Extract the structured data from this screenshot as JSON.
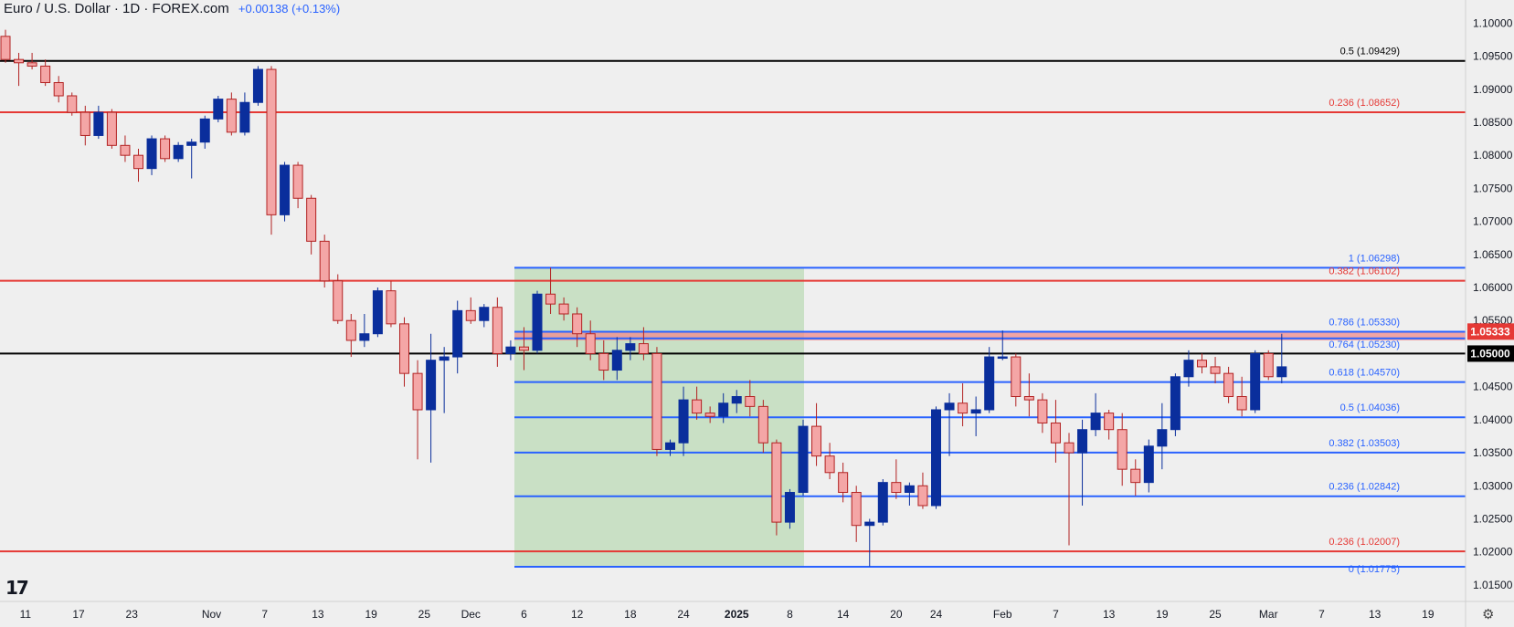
{
  "header": {
    "title": "Euro / U.S. Dollar · 1D · FOREX.com",
    "change": "+0.00138 (+0.13%)"
  },
  "icons": {
    "logo": "tradingview-logo",
    "settings": "gear-icon"
  },
  "colors": {
    "bull": "#0a2e9c",
    "bear": "#f4a6a6",
    "bear_border": "#b22222",
    "fib_red": "#e53935",
    "fib_blue": "#2962ff",
    "black_line": "#000000",
    "zone_green": "#c9e0c5",
    "zone_red": "#f28b8b"
  },
  "chart_data": {
    "type": "candlestick",
    "title": "Euro / U.S. Dollar · 1D · FOREX.com",
    "ylim": [
      1.0125,
      1.1035
    ],
    "y_ticks": [
      "1.10000",
      "1.09500",
      "1.09000",
      "1.08500",
      "1.08000",
      "1.07500",
      "1.07000",
      "1.06500",
      "1.06000",
      "1.05500",
      "1.05000",
      "1.04500",
      "1.04000",
      "1.03500",
      "1.03000",
      "1.02500",
      "1.02000",
      "1.01500"
    ],
    "x_labels": [
      "11",
      "17",
      "23",
      "Nov",
      "7",
      "13",
      "19",
      "25",
      "Dec",
      "6",
      "12",
      "18",
      "24",
      "2025",
      "8",
      "14",
      "20",
      "24",
      "Feb",
      "7",
      "13",
      "19",
      "25",
      "Mar",
      "7",
      "13",
      "19"
    ],
    "candles": [
      [
        1.098,
        1.099,
        1.094,
        1.0945
      ],
      [
        1.0945,
        1.0955,
        1.0905,
        1.094
      ],
      [
        1.094,
        1.0955,
        1.093,
        1.0935
      ],
      [
        1.0935,
        1.0945,
        1.0905,
        1.091
      ],
      [
        1.091,
        1.092,
        1.088,
        1.089
      ],
      [
        1.089,
        1.0895,
        1.086,
        1.0865
      ],
      [
        1.0865,
        1.0875,
        1.0815,
        1.083
      ],
      [
        1.083,
        1.0875,
        1.0825,
        1.0865
      ],
      [
        1.0865,
        1.087,
        1.081,
        1.0815
      ],
      [
        1.0815,
        1.083,
        1.079,
        1.08
      ],
      [
        1.08,
        1.081,
        1.076,
        1.078
      ],
      [
        1.078,
        1.083,
        1.077,
        1.0825
      ],
      [
        1.0825,
        1.083,
        1.079,
        1.0795
      ],
      [
        1.0795,
        1.082,
        1.079,
        1.0815
      ],
      [
        1.0815,
        1.0825,
        1.0765,
        1.082
      ],
      [
        1.082,
        1.086,
        1.081,
        1.0855
      ],
      [
        1.0855,
        1.089,
        1.085,
        1.0885
      ],
      [
        1.0885,
        1.0895,
        1.083,
        1.0835
      ],
      [
        1.0835,
        1.0895,
        1.083,
        1.088
      ],
      [
        1.088,
        1.0935,
        1.0875,
        1.093
      ],
      [
        1.093,
        1.0935,
        1.068,
        1.071
      ],
      [
        1.071,
        1.079,
        1.07,
        1.0785
      ],
      [
        1.0785,
        1.079,
        1.072,
        1.0735
      ],
      [
        1.0735,
        1.074,
        1.065,
        1.067
      ],
      [
        1.067,
        1.068,
        1.06,
        1.061
      ],
      [
        1.061,
        1.062,
        1.0545,
        1.055
      ],
      [
        1.055,
        1.056,
        1.0495,
        1.052
      ],
      [
        1.052,
        1.056,
        1.051,
        1.053
      ],
      [
        1.053,
        1.06,
        1.0525,
        1.0595
      ],
      [
        1.0595,
        1.061,
        1.054,
        1.0545
      ],
      [
        1.0545,
        1.0555,
        1.045,
        1.047
      ],
      [
        1.047,
        1.049,
        1.034,
        1.0415
      ],
      [
        1.0415,
        1.053,
        1.0335,
        1.049
      ],
      [
        1.049,
        1.051,
        1.041,
        1.0495
      ],
      [
        1.0495,
        1.058,
        1.047,
        1.0565
      ],
      [
        1.0565,
        1.0585,
        1.0545,
        1.055
      ],
      [
        1.055,
        1.0575,
        1.054,
        1.057
      ],
      [
        1.057,
        1.0585,
        1.048,
        1.05
      ],
      [
        1.05,
        1.052,
        1.049,
        1.051
      ],
      [
        1.051,
        1.054,
        1.0475,
        1.0505
      ],
      [
        1.0505,
        1.0595,
        1.05,
        1.059
      ],
      [
        1.059,
        1.063,
        1.056,
        1.0575
      ],
      [
        1.0575,
        1.0585,
        1.055,
        1.056
      ],
      [
        1.056,
        1.057,
        1.051,
        1.053
      ],
      [
        1.053,
        1.055,
        1.049,
        1.05
      ],
      [
        1.05,
        1.052,
        1.046,
        1.0475
      ],
      [
        1.0475,
        1.0525,
        1.046,
        1.0505
      ],
      [
        1.0505,
        1.0525,
        1.049,
        1.0515
      ],
      [
        1.0515,
        1.054,
        1.049,
        1.05
      ],
      [
        1.05,
        1.051,
        1.0345,
        1.0355
      ],
      [
        1.0355,
        1.037,
        1.0345,
        1.0365
      ],
      [
        1.0365,
        1.045,
        1.0345,
        1.043
      ],
      [
        1.043,
        1.045,
        1.04,
        1.041
      ],
      [
        1.041,
        1.042,
        1.0395,
        1.0405
      ],
      [
        1.0405,
        1.044,
        1.0395,
        1.0425
      ],
      [
        1.0425,
        1.0445,
        1.041,
        1.0435
      ],
      [
        1.0435,
        1.046,
        1.0405,
        1.042
      ],
      [
        1.042,
        1.043,
        1.035,
        1.0365
      ],
      [
        1.0365,
        1.037,
        1.0225,
        1.0245
      ],
      [
        1.0245,
        1.0295,
        1.0235,
        1.029
      ],
      [
        1.029,
        1.04,
        1.0285,
        1.039
      ],
      [
        1.039,
        1.0425,
        1.033,
        1.0345
      ],
      [
        1.0345,
        1.0365,
        1.031,
        1.032
      ],
      [
        1.032,
        1.0335,
        1.0275,
        1.029
      ],
      [
        1.029,
        1.03,
        1.0215,
        1.024
      ],
      [
        1.024,
        1.025,
        1.0178,
        1.0245
      ],
      [
        1.0245,
        1.031,
        1.024,
        1.0305
      ],
      [
        1.0305,
        1.034,
        1.028,
        1.029
      ],
      [
        1.029,
        1.0305,
        1.027,
        1.03
      ],
      [
        1.03,
        1.032,
        1.0265,
        1.027
      ],
      [
        1.027,
        1.042,
        1.0265,
        1.0415
      ],
      [
        1.0415,
        1.044,
        1.0345,
        1.0425
      ],
      [
        1.0425,
        1.0455,
        1.039,
        1.041
      ],
      [
        1.041,
        1.0435,
        1.0375,
        1.0415
      ],
      [
        1.0415,
        1.051,
        1.041,
        1.0495
      ],
      [
        1.0495,
        1.0535,
        1.049,
        1.0495
      ],
      [
        1.0495,
        1.05,
        1.042,
        1.0435
      ],
      [
        1.0435,
        1.047,
        1.0405,
        1.043
      ],
      [
        1.043,
        1.044,
        1.038,
        1.0395
      ],
      [
        1.0395,
        1.043,
        1.0335,
        1.0365
      ],
      [
        1.0365,
        1.038,
        1.021,
        1.035
      ],
      [
        1.035,
        1.04,
        1.027,
        1.0385
      ],
      [
        1.0385,
        1.044,
        1.0375,
        1.041
      ],
      [
        1.041,
        1.0415,
        1.037,
        1.0385
      ],
      [
        1.0385,
        1.041,
        1.03,
        1.0325
      ],
      [
        1.0325,
        1.034,
        1.0285,
        1.0305
      ],
      [
        1.0305,
        1.037,
        1.029,
        1.036
      ],
      [
        1.036,
        1.0425,
        1.0325,
        1.0385
      ],
      [
        1.0385,
        1.047,
        1.0375,
        1.0465
      ],
      [
        1.0465,
        1.0505,
        1.045,
        1.049
      ],
      [
        1.049,
        1.05,
        1.047,
        1.048
      ],
      [
        1.048,
        1.0495,
        1.0455,
        1.047
      ],
      [
        1.047,
        1.048,
        1.0425,
        1.0435
      ],
      [
        1.0435,
        1.0465,
        1.0405,
        1.0415
      ],
      [
        1.0415,
        1.0505,
        1.041,
        1.05
      ],
      [
        1.05,
        1.0505,
        1.046,
        1.0465
      ],
      [
        1.0465,
        1.053,
        1.0455,
        1.048
      ]
    ],
    "fib_levels": [
      {
        "label": "0.5 (1.09429)",
        "value": 1.09429,
        "color": "black"
      },
      {
        "label": "0.236 (1.08652)",
        "value": 1.08652,
        "color": "red"
      },
      {
        "label": "1 (1.06298)",
        "value": 1.06298,
        "color": "blue"
      },
      {
        "label": "0.382 (1.06102)",
        "value": 1.06102,
        "color": "red"
      },
      {
        "label": "0.786 (1.05330)",
        "value": 1.0533,
        "color": "blue"
      },
      {
        "label": "0.764 (1.05230)",
        "value": 1.0523,
        "color": "blue"
      },
      {
        "label": "0.618 (1.04570)",
        "value": 1.0457,
        "color": "blue"
      },
      {
        "label": "0.5 (1.04036)",
        "value": 1.04036,
        "color": "blue"
      },
      {
        "label": "0.382 (1.03503)",
        "value": 1.03503,
        "color": "blue"
      },
      {
        "label": "0.236 (1.02842)",
        "value": 1.02842,
        "color": "blue"
      },
      {
        "label": "0.236 (1.02007)",
        "value": 1.02007,
        "color": "red"
      },
      {
        "label": "0 (1.01775)",
        "value": 1.01775,
        "color": "blue"
      }
    ],
    "horizontal_lines": [
      {
        "value": 1.05,
        "label": "1.05000"
      }
    ],
    "price_labels": {
      "current": "1.05333",
      "level": "1.05000"
    },
    "zones": {
      "green_box": {
        "top": 1.06298,
        "bottom": 1.01775
      },
      "red_band": {
        "top": 1.05333,
        "bottom": 1.052
      }
    }
  }
}
